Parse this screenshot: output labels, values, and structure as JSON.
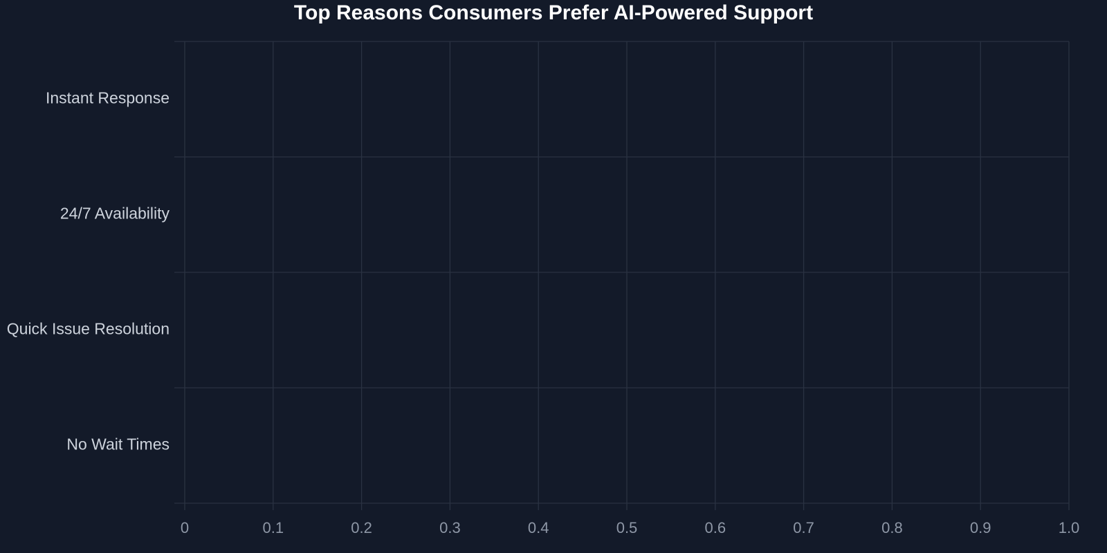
{
  "chart_data": {
    "type": "bar",
    "orientation": "horizontal",
    "title": "Top Reasons Consumers Prefer AI-Powered Support",
    "categories": [
      "Instant Response",
      "24/7 Availability",
      "Quick Issue Resolution",
      "No Wait Times"
    ],
    "xlim": [
      0,
      1
    ],
    "xticks": [
      0,
      0.1,
      0.2,
      0.3,
      0.4,
      0.5,
      0.6,
      0.7,
      0.8,
      0.9,
      {
        "value": 1,
        "label": "1.0"
      }
    ],
    "grid": true
  }
}
